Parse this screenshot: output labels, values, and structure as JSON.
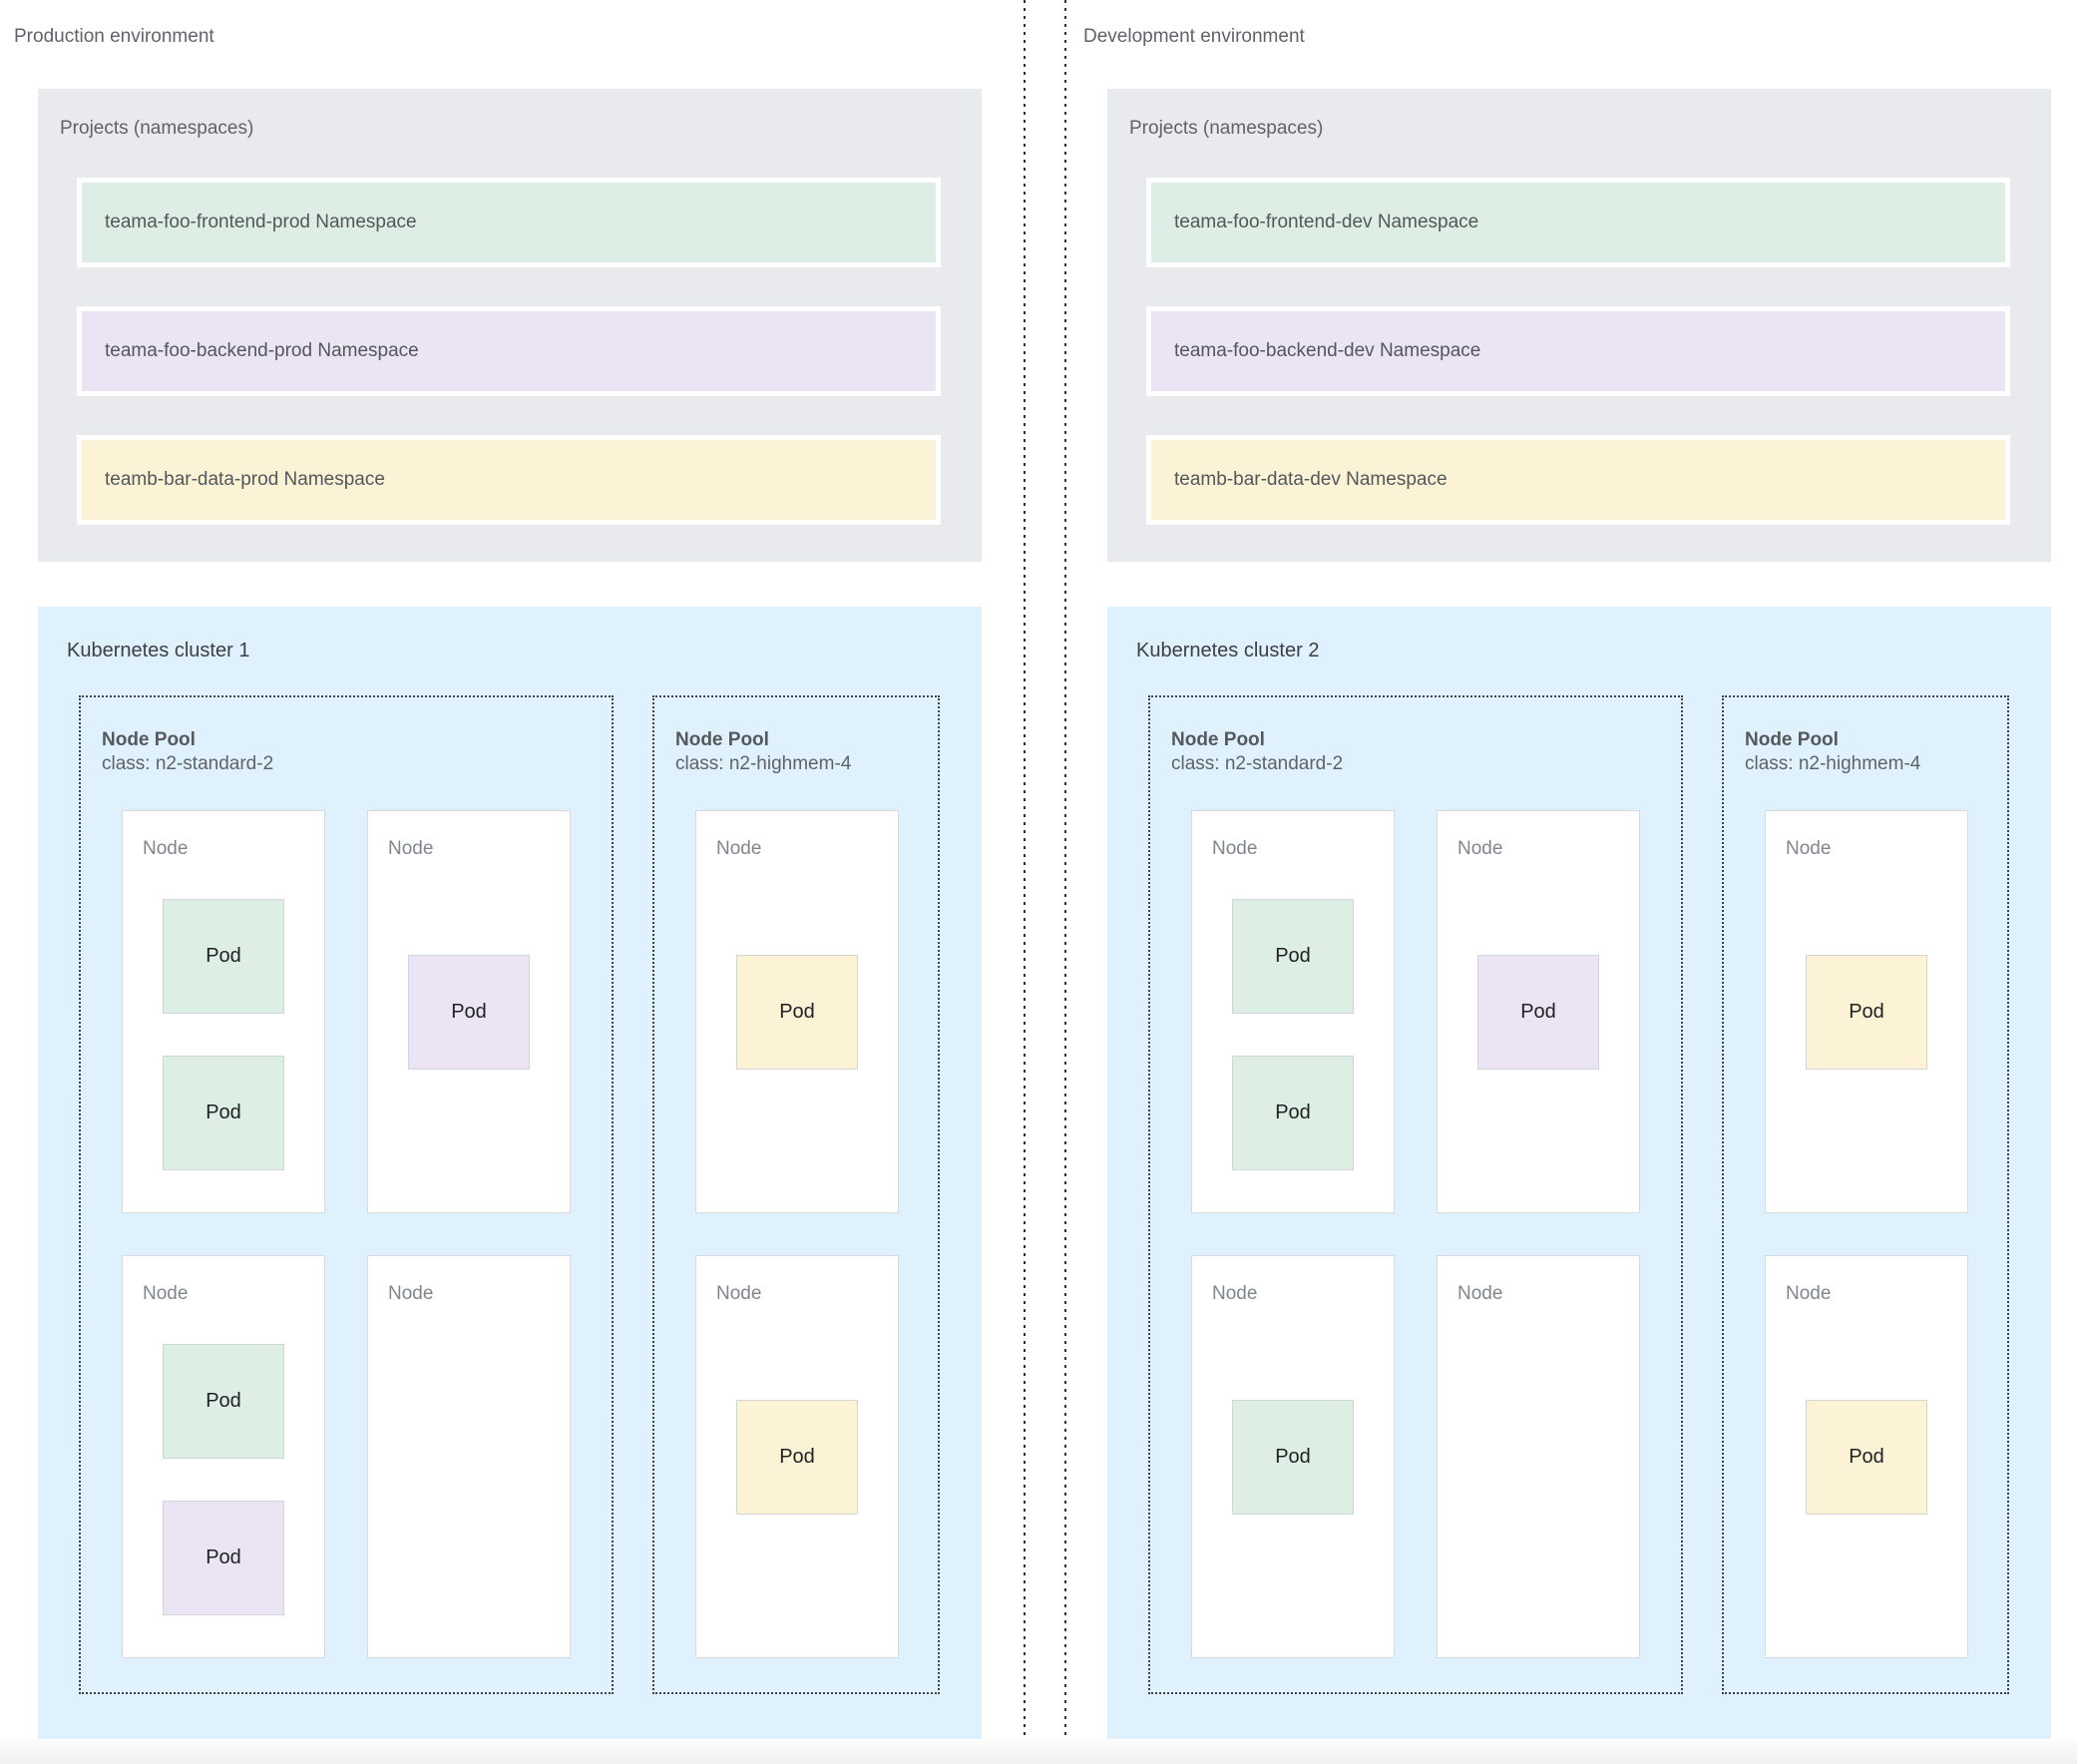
{
  "labels": {
    "node": "Node",
    "pod": "Pod"
  },
  "colors": {
    "green": "#ddeee4",
    "purple": "#ebe4f5",
    "yellow": "#fcf3d6",
    "cluster_blue": "#def1fc",
    "projects_gray": "#e8eaed"
  },
  "environments": [
    {
      "title": "Production environment",
      "projects": {
        "title": "Projects (namespaces)",
        "namespaces": [
          {
            "label": "teama-foo-frontend-prod Namespace",
            "color": "green"
          },
          {
            "label": "teama-foo-backend-prod Namespace",
            "color": "purple"
          },
          {
            "label": "teamb-bar-data-prod Namespace",
            "color": "yellow"
          }
        ]
      },
      "cluster": {
        "title": "Kubernetes cluster 1",
        "node_pools": [
          {
            "title": "Node Pool",
            "class_line": "class: n2-standard-2",
            "nodes": [
              {
                "pods": [
                  {
                    "color": "green"
                  },
                  {
                    "color": "green"
                  }
                ]
              },
              {
                "pods": [
                  {
                    "color": "purple"
                  }
                ]
              },
              {
                "pods": [
                  {
                    "color": "green"
                  },
                  {
                    "color": "purple"
                  }
                ]
              },
              {
                "pods": []
              }
            ]
          },
          {
            "title": "Node Pool",
            "class_line": "class: n2-highmem-4",
            "nodes": [
              {
                "pods": [
                  {
                    "color": "yellow"
                  }
                ]
              },
              {
                "pods": [
                  {
                    "color": "yellow"
                  }
                ]
              }
            ]
          }
        ]
      }
    },
    {
      "title": "Development environment",
      "projects": {
        "title": "Projects (namespaces)",
        "namespaces": [
          {
            "label": "teama-foo-frontend-dev Namespace",
            "color": "green"
          },
          {
            "label": "teama-foo-backend-dev Namespace",
            "color": "purple"
          },
          {
            "label": "teamb-bar-data-dev Namespace",
            "color": "yellow"
          }
        ]
      },
      "cluster": {
        "title": "Kubernetes cluster 2",
        "node_pools": [
          {
            "title": "Node Pool",
            "class_line": "class: n2-standard-2",
            "nodes": [
              {
                "pods": [
                  {
                    "color": "green"
                  },
                  {
                    "color": "green"
                  }
                ]
              },
              {
                "pods": [
                  {
                    "color": "purple"
                  }
                ]
              },
              {
                "pods": [
                  {
                    "color": "green"
                  }
                ]
              },
              {
                "pods": []
              }
            ]
          },
          {
            "title": "Node Pool",
            "class_line": "class: n2-highmem-4",
            "nodes": [
              {
                "pods": [
                  {
                    "color": "yellow"
                  }
                ]
              },
              {
                "pods": [
                  {
                    "color": "yellow"
                  }
                ]
              }
            ]
          }
        ]
      }
    }
  ]
}
